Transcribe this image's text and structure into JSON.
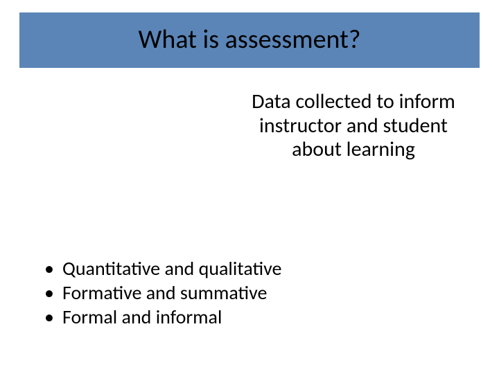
{
  "slide": {
    "title": "What is assessment?",
    "title_bar_color": "#5b85b7",
    "title_fontsize": 38,
    "title_color": "#000000",
    "subtitle": "Data collected to inform instructor and student about learning",
    "subtitle_fontsize": 30,
    "subtitle_color": "#000000",
    "bullets": [
      "Quantitative and qualitative",
      "Formative and summative",
      "Formal and informal"
    ],
    "bullet_fontsize": 28,
    "bullet_color": "#000000",
    "background_color": "#ffffff"
  }
}
